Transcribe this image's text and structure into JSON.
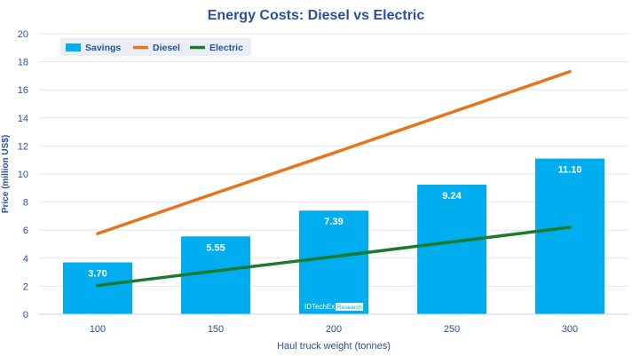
{
  "chart_data": {
    "type": "bar",
    "title": "Energy Costs: Diesel vs Electric",
    "xlabel": "Haul truck weight (tonnes)",
    "ylabel": "Price (million US$)",
    "ylim": [
      0,
      20
    ],
    "yticks": [
      0,
      2,
      4,
      6,
      8,
      10,
      12,
      14,
      16,
      18,
      20
    ],
    "categories": [
      "100",
      "150",
      "200",
      "250",
      "300"
    ],
    "grid": true,
    "legend_position": "top-left",
    "series": [
      {
        "name": "Savings",
        "kind": "bar",
        "color": "#00aeef",
        "values": [
          3.7,
          5.55,
          7.39,
          9.24,
          11.1
        ],
        "labels": [
          "3.70",
          "5.55",
          "7.39",
          "9.24",
          "11.10"
        ]
      },
      {
        "name": "Diesel",
        "kind": "line",
        "color": "#e8731a",
        "values": [
          5.75,
          8.64,
          11.5,
          14.4,
          17.3
        ]
      },
      {
        "name": "Electric",
        "kind": "line",
        "color": "#1a7a2e",
        "values": [
          2.05,
          3.09,
          4.11,
          5.16,
          6.2
        ]
      }
    ],
    "watermark": {
      "brand": "IDTechEx",
      "tag": "Research"
    }
  }
}
